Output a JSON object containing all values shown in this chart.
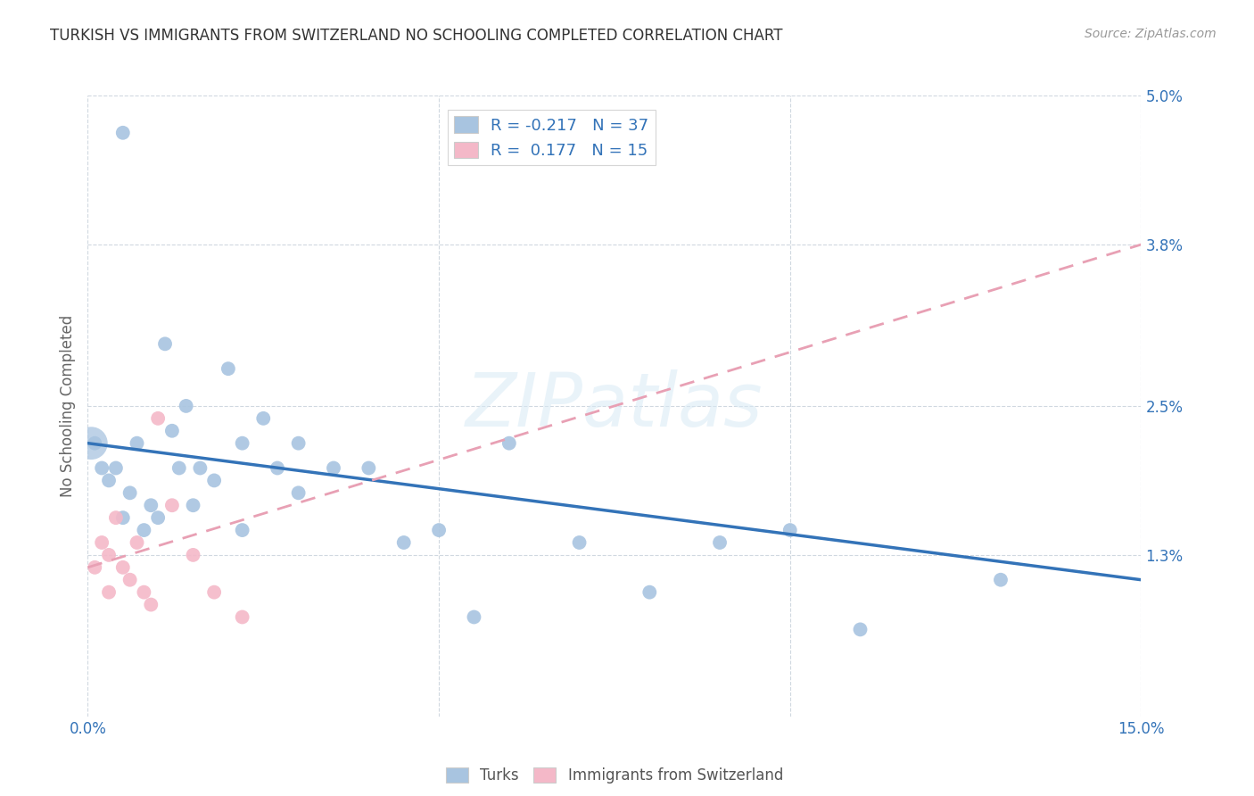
{
  "title": "TURKISH VS IMMIGRANTS FROM SWITZERLAND NO SCHOOLING COMPLETED CORRELATION CHART",
  "source": "Source: ZipAtlas.com",
  "ylabel": "No Schooling Completed",
  "xlim": [
    0.0,
    0.15
  ],
  "ylim": [
    0.0,
    0.05
  ],
  "yticks_right": [
    0.013,
    0.025,
    0.038,
    0.05
  ],
  "ytick_labels_right": [
    "1.3%",
    "2.5%",
    "3.8%",
    "5.0%"
  ],
  "xticks": [
    0.0,
    0.15
  ],
  "xticklabels_ends": [
    "0.0%",
    "15.0%"
  ],
  "legend_labels": [
    "Turks",
    "Immigrants from Switzerland"
  ],
  "turks_R": "-0.217",
  "turks_N": "37",
  "swiss_R": "0.177",
  "swiss_N": "15",
  "turks_color": "#a8c4e0",
  "swiss_color": "#f4b8c8",
  "turks_line_color": "#3373b8",
  "swiss_line_color": "#e8a0b4",
  "background_color": "#ffffff",
  "grid_color": "#d0d8e0",
  "turks_line_x": [
    0.0,
    0.15
  ],
  "turks_line_y": [
    0.022,
    0.011
  ],
  "swiss_line_x": [
    0.0,
    0.15
  ],
  "swiss_line_y": [
    0.012,
    0.038
  ],
  "turks_scatter_x": [
    0.001,
    0.002,
    0.003,
    0.004,
    0.005,
    0.006,
    0.007,
    0.008,
    0.009,
    0.01,
    0.011,
    0.012,
    0.013,
    0.014,
    0.015,
    0.016,
    0.018,
    0.02,
    0.022,
    0.025,
    0.027,
    0.03,
    0.03,
    0.035,
    0.04,
    0.05,
    0.055,
    0.06,
    0.07,
    0.08,
    0.09,
    0.1,
    0.11,
    0.13,
    0.005,
    0.022,
    0.045
  ],
  "turks_scatter_y": [
    0.022,
    0.02,
    0.019,
    0.02,
    0.016,
    0.018,
    0.022,
    0.015,
    0.017,
    0.016,
    0.03,
    0.023,
    0.02,
    0.025,
    0.017,
    0.02,
    0.019,
    0.028,
    0.022,
    0.024,
    0.02,
    0.022,
    0.018,
    0.02,
    0.02,
    0.015,
    0.008,
    0.022,
    0.014,
    0.01,
    0.014,
    0.015,
    0.007,
    0.011,
    0.047,
    0.015,
    0.014
  ],
  "turks_scatter_large_x": [
    0.0005
  ],
  "turks_scatter_large_y": [
    0.022
  ],
  "swiss_scatter_x": [
    0.001,
    0.002,
    0.003,
    0.003,
    0.004,
    0.005,
    0.006,
    0.007,
    0.008,
    0.009,
    0.01,
    0.012,
    0.015,
    0.018,
    0.022
  ],
  "swiss_scatter_y": [
    0.012,
    0.014,
    0.013,
    0.01,
    0.016,
    0.012,
    0.011,
    0.014,
    0.01,
    0.009,
    0.024,
    0.017,
    0.013,
    0.01,
    0.008
  ]
}
